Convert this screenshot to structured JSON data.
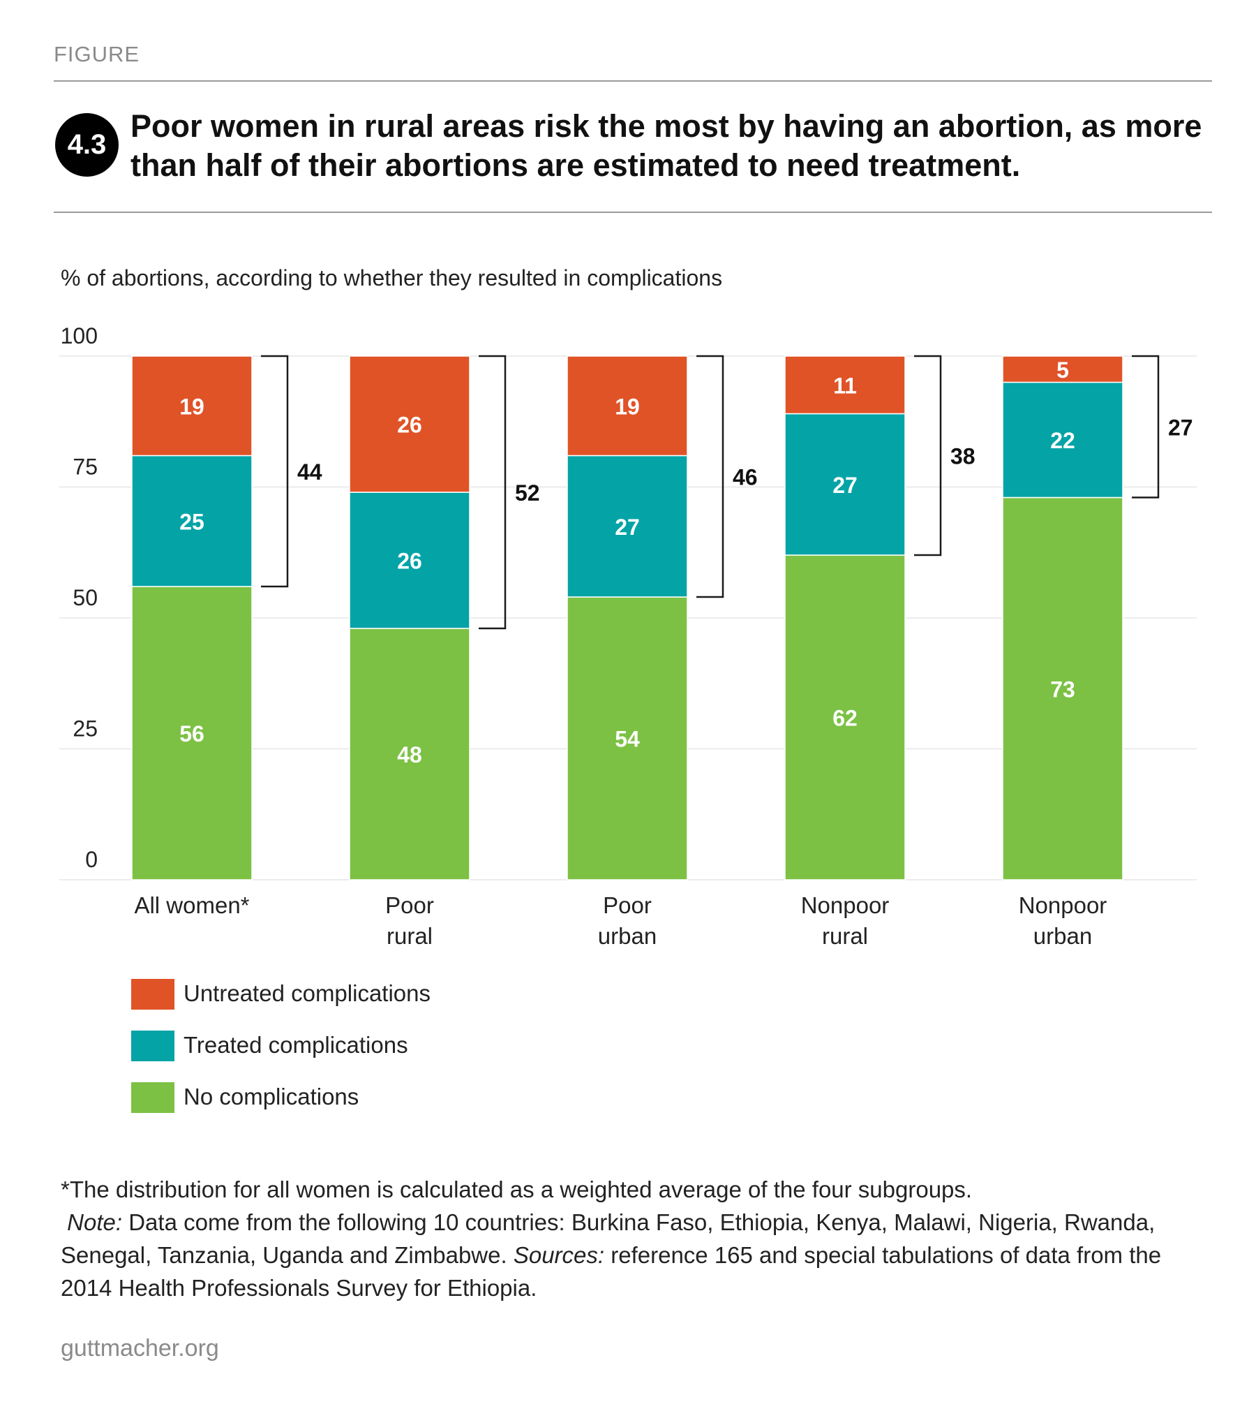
{
  "header": {
    "kicker": "FIGURE",
    "figure_number": "4.3",
    "title": "Poor women in rural areas risk the most by having an abortion, as more than half of their abortions are estimated to need treatment."
  },
  "colors": {
    "untreated": "#e05327",
    "treated": "#03a3a6",
    "none": "#7cc144",
    "grid": "#e6e6e6",
    "text": "#222222"
  },
  "chart_data": {
    "type": "bar",
    "stacked": true,
    "subtitle": "% of abortions, according to whether they resulted in complications",
    "categories": [
      [
        "All women*"
      ],
      [
        "Poor",
        "rural"
      ],
      [
        "Poor",
        "urban"
      ],
      [
        "Nonpoor",
        "rural"
      ],
      [
        "Nonpoor",
        "urban"
      ]
    ],
    "series": [
      {
        "name": "No complications",
        "key": "none",
        "values": [
          56,
          48,
          54,
          62,
          73
        ]
      },
      {
        "name": "Treated complications",
        "key": "treated",
        "values": [
          25,
          26,
          27,
          27,
          22
        ]
      },
      {
        "name": "Untreated complications",
        "key": "untreated",
        "values": [
          19,
          26,
          19,
          11,
          5
        ]
      }
    ],
    "complication_totals": [
      44,
      52,
      46,
      38,
      27
    ],
    "yticks": [
      0,
      25,
      50,
      75,
      100
    ],
    "ylim": [
      0,
      100
    ],
    "grid": true
  },
  "legend": [
    {
      "label": "Untreated complications",
      "key": "untreated"
    },
    {
      "label": "Treated complications",
      "key": "treated"
    },
    {
      "label": "No complications",
      "key": "none"
    }
  ],
  "footnote": {
    "line1": "*The distribution for all women is calculated as a weighted average of the four subgroups.",
    "note_label": "Note:",
    "note_text": " Data come from the following 10 countries: Burkina Faso, Ethiopia, Kenya, Malawi, Nigeria, Rwanda, Senegal, Tanzania, Uganda and Zimbabwe. ",
    "sources_label": "Sources:",
    "sources_text": " reference 165 and special tabulations of data from the 2014 Health Professionals Survey for Ethiopia."
  },
  "brand": "guttmacher.org"
}
